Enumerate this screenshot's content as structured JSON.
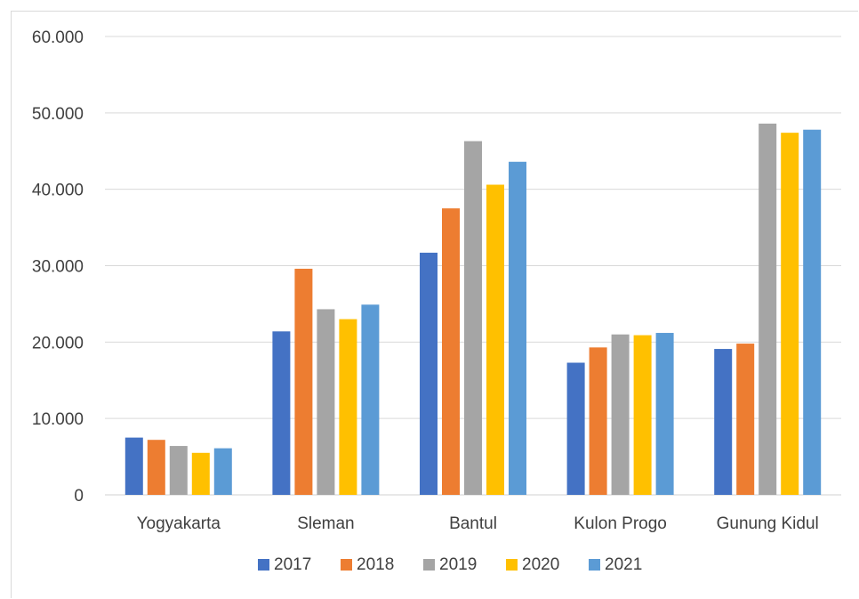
{
  "chart_data": {
    "type": "bar",
    "title": "",
    "xlabel": "",
    "ylabel": "",
    "categories": [
      "Yogyakarta",
      "Sleman",
      "Bantul",
      "Kulon Progo",
      "Gunung Kidul"
    ],
    "ylim": [
      0,
      60000
    ],
    "yticks": [
      0,
      10000,
      20000,
      30000,
      40000,
      50000,
      60000
    ],
    "ytick_labels": [
      "0",
      "10.000",
      "20.000",
      "30.000",
      "40.000",
      "50.000",
      "60.000"
    ],
    "grid": true,
    "legend_position": "bottom",
    "series": [
      {
        "name": "2017",
        "color": "#4472c4",
        "values": [
          7500,
          21400,
          31700,
          17300,
          19100
        ]
      },
      {
        "name": "2018",
        "color": "#ed7d31",
        "values": [
          7200,
          29600,
          37500,
          19300,
          19800
        ]
      },
      {
        "name": "2019",
        "color": "#a5a5a5",
        "values": [
          6400,
          24300,
          46300,
          21000,
          48600
        ]
      },
      {
        "name": "2020",
        "color": "#ffc000",
        "values": [
          5500,
          23000,
          40600,
          20900,
          47400
        ]
      },
      {
        "name": "2021",
        "color": "#5b9bd5",
        "values": [
          6100,
          24900,
          43600,
          21200,
          47800
        ]
      }
    ]
  }
}
